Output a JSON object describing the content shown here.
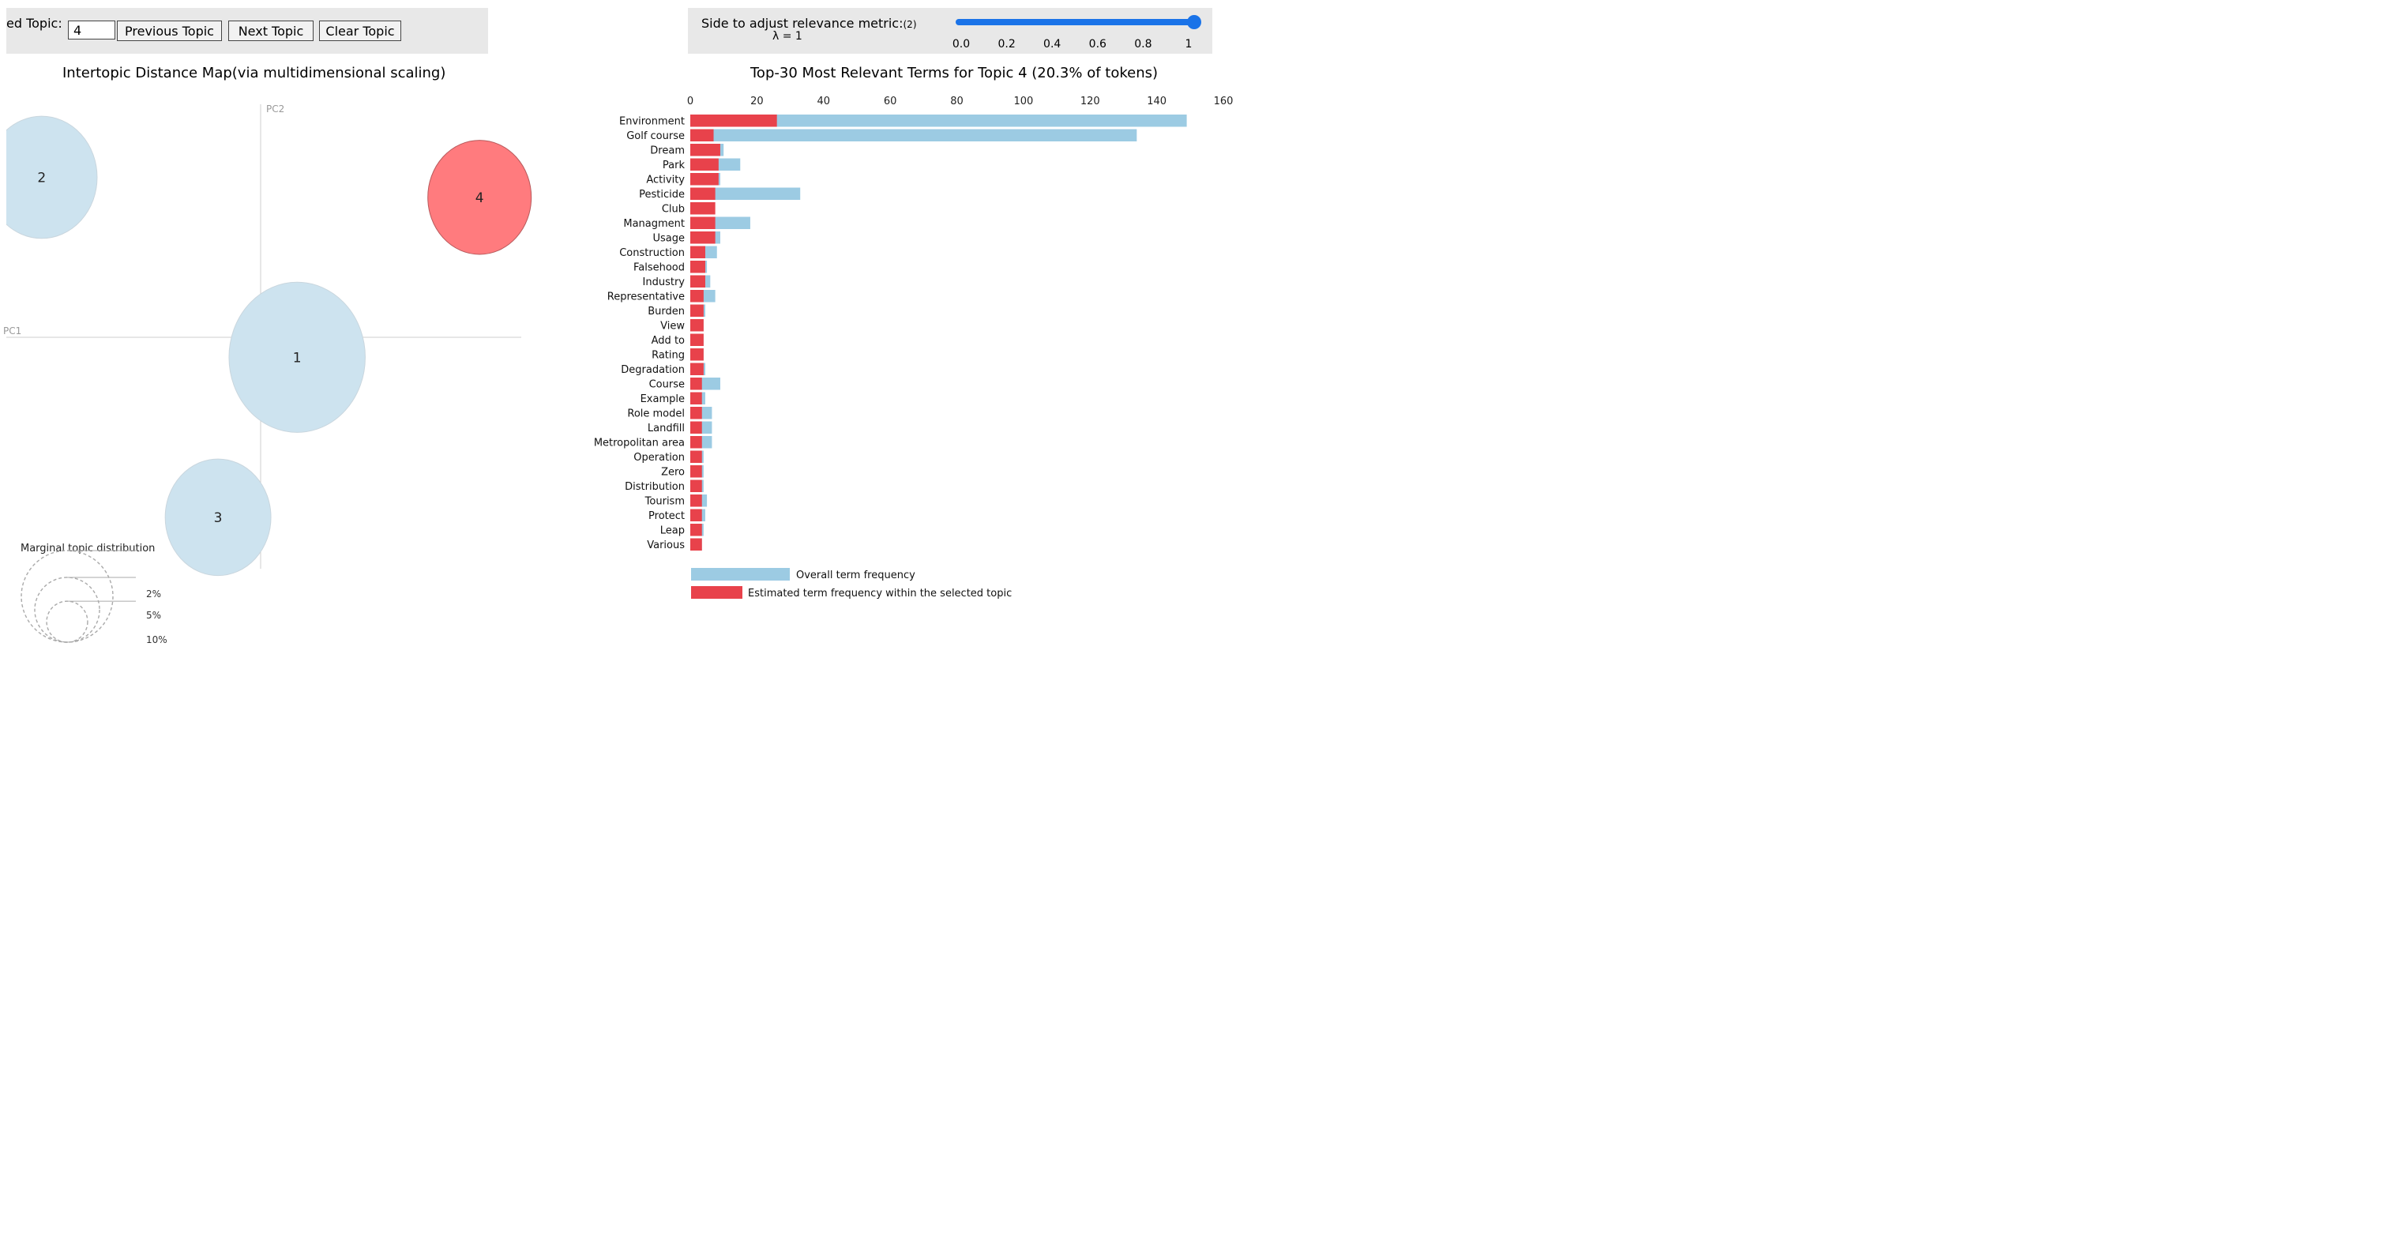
{
  "controls": {
    "topic_label": "ed Topic:",
    "topic_value": "4",
    "prev_button": "Previous Topic",
    "next_button": "Next Topic",
    "clear_button": "Clear Topic",
    "slider_label": "Side to adjust relevance metric:",
    "slider_note": "(2)",
    "lambda_label": "λ = 1",
    "lambda_value": 1,
    "slider_ticks": [
      "0.0",
      "0.2",
      "0.4",
      "0.6",
      "0.8",
      "1"
    ]
  },
  "colors": {
    "overall": "#9ccbe3",
    "topic": "#e8424b",
    "selected_bubble": "#ff7b7e",
    "bubble": "#cde3ef",
    "slider": "#1a73e8"
  },
  "chart_data": [
    {
      "type": "scatter",
      "title": "Intertopic Distance Map(via multidimensional scaling)",
      "xlabel": "PC1",
      "ylabel": "PC2",
      "selected_topic": 4,
      "topics": [
        {
          "id": "1",
          "pc1": 0.06,
          "pc2": -0.03,
          "size_pct": 35.2
        },
        {
          "id": "2",
          "pc1": -0.36,
          "pc2": 0.24,
          "size_pct": 23.3
        },
        {
          "id": "3",
          "pc1": -0.07,
          "pc2": -0.27,
          "size_pct": 21.2
        },
        {
          "id": "4",
          "pc1": 0.36,
          "pc2": 0.21,
          "size_pct": 20.3
        }
      ],
      "legend": {
        "title": "Marginal topic distribution",
        "entries": [
          "2%",
          "5%",
          "10%"
        ],
        "entry_values": [
          2,
          5,
          10
        ]
      }
    },
    {
      "type": "bar",
      "orientation": "horizontal",
      "title": "Top-30 Most Relevant Terms for Topic 4 (20.3% of tokens)",
      "xlim": [
        0,
        160
      ],
      "xticks": [
        "0",
        "20",
        "40",
        "60",
        "80",
        "100",
        "120",
        "140",
        "160"
      ],
      "categories": [
        "Environment",
        "Golf course",
        "Dream",
        "Park",
        "Activity",
        "Pesticide",
        "Club",
        "Managment",
        "Usage",
        "Construction",
        "Falsehood",
        "Industry",
        "Representative",
        "Burden",
        "View",
        "Add to",
        "Rating",
        "Degradation",
        "Course",
        "Example",
        "Role model",
        "Landfill",
        "Metropolitan area",
        "Operation",
        "Zero",
        "Distribution",
        "Tourism",
        "Protect",
        "Leap",
        "Various"
      ],
      "series": [
        {
          "name": "Overall term frequency",
          "values": [
            149,
            134,
            10,
            15,
            9,
            33,
            7,
            18,
            9,
            8,
            5,
            6,
            7.5,
            4.5,
            4,
            4,
            4,
            4.5,
            9,
            4.5,
            6.5,
            6.5,
            6.5,
            4,
            4,
            4,
            5,
            4.5,
            4,
            3.5
          ]
        },
        {
          "name": "Estimated term frequency within the selected topic",
          "values": [
            26,
            7,
            9,
            8.5,
            8.5,
            7.5,
            7.5,
            7.5,
            7.5,
            4.5,
            4.5,
            4.5,
            4,
            4,
            4,
            4,
            4,
            4,
            3.5,
            3.5,
            3.5,
            3.5,
            3.5,
            3.5,
            3.5,
            3.5,
            3.5,
            3.5,
            3.5,
            3.5
          ]
        }
      ],
      "legend": [
        "Overall term frequency",
        "Estimated term frequency within the selected topic"
      ]
    }
  ]
}
